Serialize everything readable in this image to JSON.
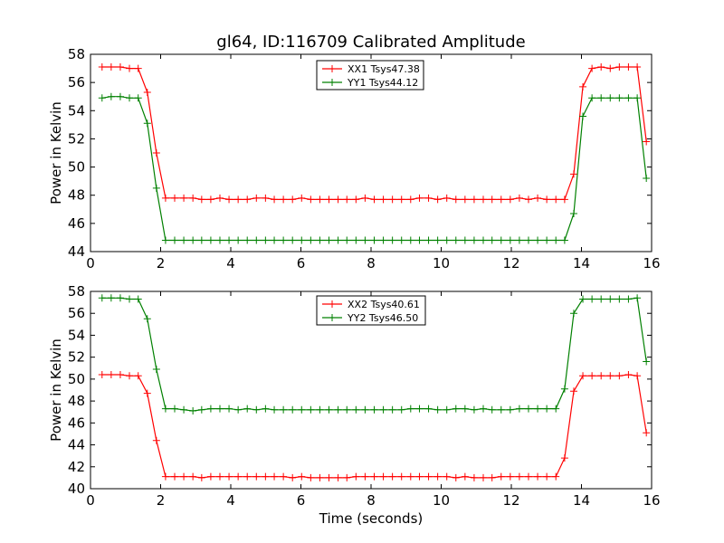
{
  "figure": {
    "title": "gl64, ID:116709 Calibrated Amplitude"
  },
  "chart_data": [
    {
      "type": "line",
      "title": "gl64, ID:116709 Calibrated Amplitude",
      "xlabel": "",
      "ylabel": "Power in Kelvin",
      "xlim": [
        0,
        16
      ],
      "ylim": [
        44,
        58
      ],
      "xticks": [
        0,
        2,
        4,
        6,
        8,
        10,
        12,
        14,
        16
      ],
      "yticks": [
        44,
        46,
        48,
        50,
        52,
        54,
        56,
        58
      ],
      "grid": false,
      "legend_position": "upper-center",
      "x": [
        0.33,
        0.59,
        0.85,
        1.11,
        1.36,
        1.62,
        1.88,
        2.14,
        2.4,
        2.66,
        2.92,
        3.17,
        3.43,
        3.69,
        3.95,
        4.21,
        4.47,
        4.73,
        4.99,
        5.24,
        5.5,
        5.76,
        6.02,
        6.28,
        6.54,
        6.8,
        7.06,
        7.31,
        7.57,
        7.83,
        8.09,
        8.35,
        8.61,
        8.87,
        9.13,
        9.38,
        9.64,
        9.9,
        10.16,
        10.42,
        10.68,
        10.94,
        11.2,
        11.45,
        11.71,
        11.97,
        12.23,
        12.49,
        12.75,
        13.01,
        13.27,
        13.52,
        13.78,
        14.04,
        14.3,
        14.56,
        14.82,
        15.08,
        15.34,
        15.59,
        15.85
      ],
      "series": [
        {
          "name": "XX1 Tsys47.38",
          "color": "#ff0000",
          "values": [
            57.1,
            57.1,
            57.1,
            57.0,
            57.0,
            55.3,
            51.0,
            47.8,
            47.8,
            47.8,
            47.8,
            47.7,
            47.7,
            47.8,
            47.7,
            47.7,
            47.7,
            47.8,
            47.8,
            47.7,
            47.7,
            47.7,
            47.8,
            47.7,
            47.7,
            47.7,
            47.7,
            47.7,
            47.7,
            47.8,
            47.7,
            47.7,
            47.7,
            47.7,
            47.7,
            47.8,
            47.8,
            47.7,
            47.8,
            47.7,
            47.7,
            47.7,
            47.7,
            47.7,
            47.7,
            47.7,
            47.8,
            47.7,
            47.8,
            47.7,
            47.7,
            47.7,
            49.5,
            55.7,
            57.0,
            57.1,
            57.0,
            57.1,
            57.1,
            57.1,
            51.8
          ]
        },
        {
          "name": "YY1 Tsys44.12",
          "color": "#008000",
          "values": [
            54.9,
            55.0,
            55.0,
            54.9,
            54.9,
            53.1,
            48.5,
            44.8,
            44.8,
            44.8,
            44.8,
            44.8,
            44.8,
            44.8,
            44.8,
            44.8,
            44.8,
            44.8,
            44.8,
            44.8,
            44.8,
            44.8,
            44.8,
            44.8,
            44.8,
            44.8,
            44.8,
            44.8,
            44.8,
            44.8,
            44.8,
            44.8,
            44.8,
            44.8,
            44.8,
            44.8,
            44.8,
            44.8,
            44.8,
            44.8,
            44.8,
            44.8,
            44.8,
            44.8,
            44.8,
            44.8,
            44.8,
            44.8,
            44.8,
            44.8,
            44.8,
            44.8,
            46.7,
            53.6,
            54.9,
            54.9,
            54.9,
            54.9,
            54.9,
            54.9,
            49.2
          ]
        }
      ]
    },
    {
      "type": "line",
      "title": "",
      "xlabel": "Time (seconds)",
      "ylabel": "Power in Kelvin",
      "xlim": [
        0,
        16
      ],
      "ylim": [
        40,
        58
      ],
      "xticks": [
        0,
        2,
        4,
        6,
        8,
        10,
        12,
        14,
        16
      ],
      "yticks": [
        40,
        42,
        44,
        46,
        48,
        50,
        52,
        54,
        56,
        58
      ],
      "grid": false,
      "legend_position": "upper-center",
      "x": [
        0.33,
        0.59,
        0.85,
        1.11,
        1.36,
        1.62,
        1.88,
        2.14,
        2.4,
        2.66,
        2.92,
        3.17,
        3.43,
        3.69,
        3.95,
        4.21,
        4.47,
        4.73,
        4.99,
        5.24,
        5.5,
        5.76,
        6.02,
        6.28,
        6.54,
        6.8,
        7.06,
        7.31,
        7.57,
        7.83,
        8.09,
        8.35,
        8.61,
        8.87,
        9.13,
        9.38,
        9.64,
        9.9,
        10.16,
        10.42,
        10.68,
        10.94,
        11.2,
        11.45,
        11.71,
        11.97,
        12.23,
        12.49,
        12.75,
        13.01,
        13.27,
        13.52,
        13.78,
        14.04,
        14.3,
        14.56,
        14.82,
        15.08,
        15.34,
        15.59,
        15.85
      ],
      "series": [
        {
          "name": "XX2 Tsys40.61",
          "color": "#ff0000",
          "values": [
            50.4,
            50.4,
            50.4,
            50.3,
            50.3,
            48.7,
            44.4,
            41.1,
            41.1,
            41.1,
            41.1,
            41.0,
            41.1,
            41.1,
            41.1,
            41.1,
            41.1,
            41.1,
            41.1,
            41.1,
            41.1,
            41.0,
            41.1,
            41.0,
            41.0,
            41.0,
            41.0,
            41.0,
            41.1,
            41.1,
            41.1,
            41.1,
            41.1,
            41.1,
            41.1,
            41.1,
            41.1,
            41.1,
            41.1,
            41.0,
            41.1,
            41.0,
            41.0,
            41.0,
            41.1,
            41.1,
            41.1,
            41.1,
            41.1,
            41.1,
            41.1,
            42.8,
            48.9,
            50.3,
            50.3,
            50.3,
            50.3,
            50.3,
            50.4,
            50.3,
            45.1
          ]
        },
        {
          "name": "YY2 Tsys46.50",
          "color": "#008000",
          "values": [
            57.4,
            57.4,
            57.4,
            57.3,
            57.3,
            55.5,
            50.9,
            47.3,
            47.3,
            47.2,
            47.1,
            47.2,
            47.3,
            47.3,
            47.3,
            47.2,
            47.3,
            47.2,
            47.3,
            47.2,
            47.2,
            47.2,
            47.2,
            47.2,
            47.2,
            47.2,
            47.2,
            47.2,
            47.2,
            47.2,
            47.2,
            47.2,
            47.2,
            47.2,
            47.3,
            47.3,
            47.3,
            47.2,
            47.2,
            47.3,
            47.3,
            47.2,
            47.3,
            47.2,
            47.2,
            47.2,
            47.3,
            47.3,
            47.3,
            47.3,
            47.3,
            49.1,
            56.0,
            57.3,
            57.3,
            57.3,
            57.3,
            57.3,
            57.3,
            57.4,
            51.6
          ]
        }
      ]
    }
  ]
}
